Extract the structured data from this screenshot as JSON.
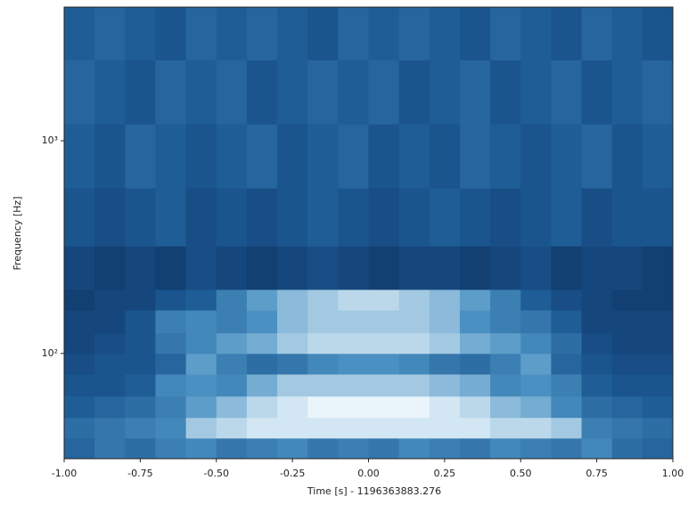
{
  "chart_data": {
    "type": "heatmap",
    "xlabel": "Time [s] - 1196363883.276",
    "ylabel": "Frequency [Hz]",
    "xlim": [
      -1,
      1
    ],
    "ylim": [
      32,
      4250
    ],
    "yscale": "log",
    "xticks": [
      {
        "value": -1,
        "label": "-1.00"
      },
      {
        "value": -0.75,
        "label": "-0.75"
      },
      {
        "value": -0.5,
        "label": "-0.50"
      },
      {
        "value": -0.25,
        "label": "-0.25"
      },
      {
        "value": 0,
        "label": "0.00"
      },
      {
        "value": 0.25,
        "label": "0.25"
      },
      {
        "value": 0.5,
        "label": "0.50"
      },
      {
        "value": 0.75,
        "label": "0.75"
      },
      {
        "value": 1,
        "label": "1.00"
      }
    ],
    "yticks": [
      {
        "value": 100,
        "label": "10²"
      },
      {
        "value": 1000,
        "label": "10³"
      }
    ],
    "colors": [
      "#0a2a57",
      "#1c5a94",
      "#4d93c4",
      "#eaf5fb"
    ],
    "x_edges": [
      -1,
      -0.9,
      -0.8,
      -0.7,
      -0.6,
      -0.5,
      -0.4,
      -0.3,
      -0.2,
      -0.1,
      0,
      0.1,
      0.2,
      0.3,
      0.4,
      0.5,
      0.6,
      0.7,
      0.8,
      0.9,
      1
    ],
    "y_edges": [
      32,
      40,
      50,
      63,
      80,
      100,
      125,
      160,
      200,
      320,
      600,
      1200,
      2400,
      4250
    ],
    "values": [
      [
        0.4,
        0.5,
        0.45,
        0.55,
        0.6,
        0.5,
        0.55,
        0.6,
        0.5,
        0.55,
        0.5,
        0.6,
        0.55,
        0.5,
        0.6,
        0.55,
        0.5,
        0.6,
        0.45,
        0.4
      ],
      [
        0.45,
        0.5,
        0.55,
        0.6,
        0.85,
        0.9,
        0.95,
        0.95,
        0.95,
        0.95,
        0.95,
        0.95,
        0.95,
        0.95,
        0.9,
        0.9,
        0.85,
        0.55,
        0.5,
        0.45
      ],
      [
        0.35,
        0.4,
        0.45,
        0.55,
        0.7,
        0.8,
        0.9,
        0.95,
        1,
        1,
        1,
        1,
        0.95,
        0.9,
        0.8,
        0.75,
        0.6,
        0.45,
        0.4,
        0.35
      ],
      [
        0.3,
        0.3,
        0.35,
        0.6,
        0.65,
        0.6,
        0.75,
        0.85,
        0.85,
        0.85,
        0.85,
        0.85,
        0.8,
        0.75,
        0.6,
        0.65,
        0.55,
        0.35,
        0.3,
        0.3
      ],
      [
        0.25,
        0.3,
        0.3,
        0.4,
        0.7,
        0.55,
        0.45,
        0.5,
        0.6,
        0.65,
        0.65,
        0.6,
        0.5,
        0.45,
        0.55,
        0.7,
        0.4,
        0.3,
        0.25,
        0.25
      ],
      [
        0.2,
        0.25,
        0.3,
        0.5,
        0.6,
        0.7,
        0.75,
        0.85,
        0.9,
        0.9,
        0.9,
        0.9,
        0.85,
        0.75,
        0.7,
        0.6,
        0.45,
        0.25,
        0.2,
        0.2
      ],
      [
        0.2,
        0.2,
        0.3,
        0.55,
        0.6,
        0.55,
        0.65,
        0.8,
        0.85,
        0.85,
        0.85,
        0.85,
        0.8,
        0.65,
        0.55,
        0.5,
        0.35,
        0.2,
        0.2,
        0.2
      ],
      [
        0.15,
        0.2,
        0.2,
        0.3,
        0.35,
        0.55,
        0.7,
        0.8,
        0.85,
        0.9,
        0.9,
        0.85,
        0.8,
        0.7,
        0.55,
        0.35,
        0.25,
        0.2,
        0.15,
        0.15
      ],
      [
        0.2,
        0.15,
        0.2,
        0.15,
        0.25,
        0.2,
        0.15,
        0.2,
        0.25,
        0.2,
        0.15,
        0.2,
        0.2,
        0.15,
        0.2,
        0.25,
        0.15,
        0.2,
        0.2,
        0.15
      ],
      [
        0.3,
        0.25,
        0.3,
        0.35,
        0.25,
        0.3,
        0.25,
        0.3,
        0.35,
        0.3,
        0.25,
        0.3,
        0.35,
        0.3,
        0.25,
        0.3,
        0.35,
        0.25,
        0.3,
        0.3
      ],
      [
        0.35,
        0.3,
        0.4,
        0.35,
        0.3,
        0.35,
        0.4,
        0.3,
        0.35,
        0.4,
        0.3,
        0.35,
        0.3,
        0.4,
        0.35,
        0.3,
        0.35,
        0.4,
        0.3,
        0.35
      ],
      [
        0.4,
        0.35,
        0.3,
        0.4,
        0.35,
        0.4,
        0.3,
        0.35,
        0.4,
        0.35,
        0.4,
        0.3,
        0.35,
        0.4,
        0.3,
        0.35,
        0.4,
        0.3,
        0.35,
        0.4
      ],
      [
        0.35,
        0.4,
        0.35,
        0.3,
        0.4,
        0.35,
        0.4,
        0.35,
        0.3,
        0.4,
        0.35,
        0.4,
        0.35,
        0.3,
        0.4,
        0.35,
        0.3,
        0.4,
        0.35,
        0.3
      ]
    ]
  }
}
